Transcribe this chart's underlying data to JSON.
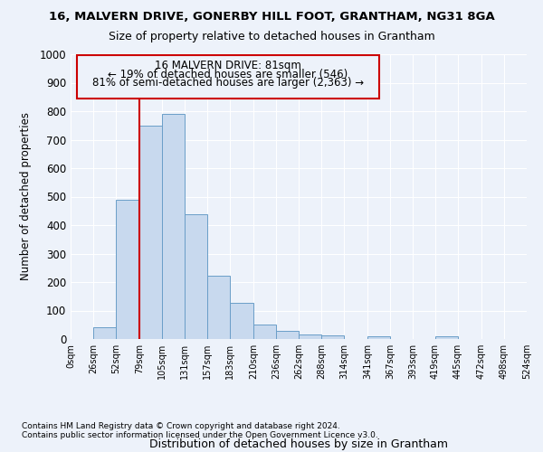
{
  "title1": "16, MALVERN DRIVE, GONERBY HILL FOOT, GRANTHAM, NG31 8GA",
  "title2": "Size of property relative to detached houses in Grantham",
  "xlabel": "Distribution of detached houses by size in Grantham",
  "ylabel": "Number of detached properties",
  "bar_color": "#c8d9ee",
  "bar_edge_color": "#6a9ec8",
  "property_line_x": 79,
  "property_line_color": "#cc0000",
  "annotation_line1": "16 MALVERN DRIVE: 81sqm",
  "annotation_line2": "← 19% of detached houses are smaller (546)",
  "annotation_line3": "81% of semi-detached houses are larger (2,363) →",
  "annotation_box_color": "#cc0000",
  "bin_edges": [
    0,
    26,
    52,
    79,
    105,
    131,
    157,
    183,
    210,
    236,
    262,
    288,
    314,
    341,
    367,
    393,
    419,
    445,
    472,
    498,
    524
  ],
  "bar_heights": [
    0,
    42,
    488,
    750,
    790,
    438,
    222,
    128,
    52,
    27,
    15,
    12,
    0,
    8,
    0,
    0,
    8,
    0,
    0,
    0
  ],
  "tick_labels": [
    "0sqm",
    "26sqm",
    "52sqm",
    "79sqm",
    "105sqm",
    "131sqm",
    "157sqm",
    "183sqm",
    "210sqm",
    "236sqm",
    "262sqm",
    "288sqm",
    "314sqm",
    "341sqm",
    "367sqm",
    "393sqm",
    "419sqm",
    "445sqm",
    "472sqm",
    "498sqm",
    "524sqm"
  ],
  "ylim": [
    0,
    1000
  ],
  "yticks": [
    0,
    100,
    200,
    300,
    400,
    500,
    600,
    700,
    800,
    900,
    1000
  ],
  "footer1": "Contains HM Land Registry data © Crown copyright and database right 2024.",
  "footer2": "Contains public sector information licensed under the Open Government Licence v3.0.",
  "background_color": "#edf2fa",
  "grid_color": "#ffffff"
}
